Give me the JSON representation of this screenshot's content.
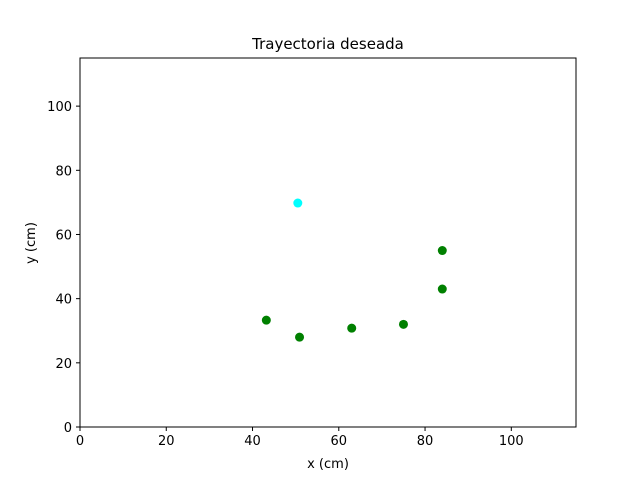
{
  "chart_data": {
    "type": "scatter",
    "title": "Trayectoria deseada",
    "xlabel": "x (cm)",
    "ylabel": "y (cm)",
    "xlim": [
      0,
      115
    ],
    "ylim": [
      0,
      115
    ],
    "xticks": [
      0,
      20,
      40,
      60,
      80,
      100
    ],
    "yticks": [
      0,
      20,
      40,
      60,
      80,
      100
    ],
    "grid": false,
    "series": [
      {
        "color": "#00ffff",
        "points": [
          {
            "x": 50.5,
            "y": 69.8
          }
        ]
      },
      {
        "color": "#008000",
        "points": [
          {
            "x": 43.2,
            "y": 33.3
          },
          {
            "x": 50.9,
            "y": 28.0
          },
          {
            "x": 63.0,
            "y": 30.8
          },
          {
            "x": 75.0,
            "y": 32.0
          },
          {
            "x": 84.0,
            "y": 43.0
          },
          {
            "x": 84.0,
            "y": 55.0
          }
        ]
      }
    ]
  }
}
